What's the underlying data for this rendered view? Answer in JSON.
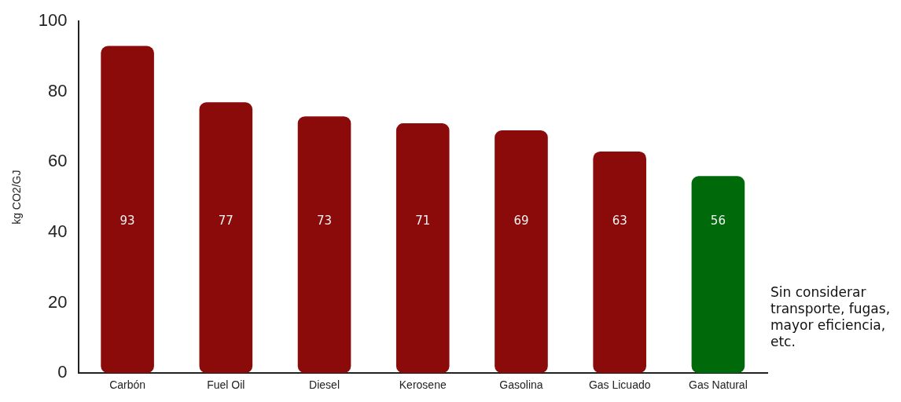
{
  "chart_data": {
    "type": "bar",
    "ylabel": "kg CO2/GJ",
    "categories": [
      "Carbón",
      "Fuel Oil",
      "Diesel",
      "Kerosene",
      "Gasolina",
      "Gas Licuado",
      "Gas Natural"
    ],
    "values": [
      93,
      77,
      73,
      71,
      69,
      63,
      56
    ],
    "colors": [
      "#8b0b0b",
      "#8b0b0b",
      "#8b0b0b",
      "#8b0b0b",
      "#8b0b0b",
      "#8b0b0b",
      "#00690a"
    ],
    "ylim": [
      0,
      100
    ],
    "yticks": [
      0,
      20,
      40,
      60,
      80,
      100
    ],
    "grid": false,
    "data_labels": true,
    "legend": false,
    "annotations": [
      "Sin considerar transporte, fugas, mayor eficiencia, etc."
    ]
  }
}
